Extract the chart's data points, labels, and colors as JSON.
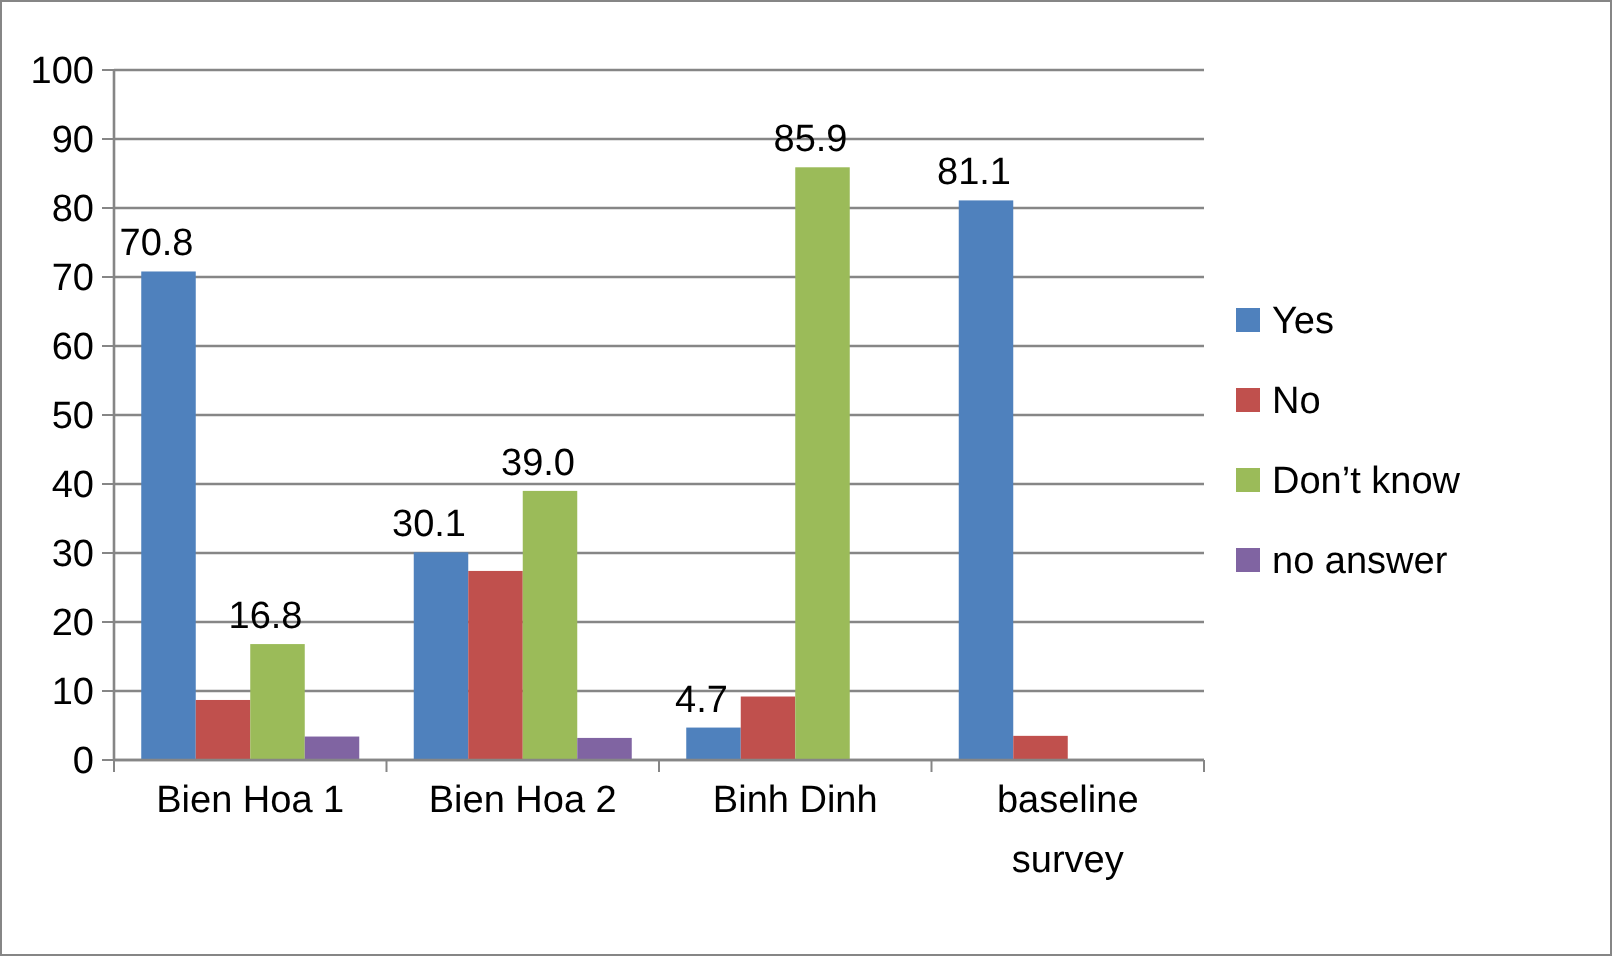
{
  "chart_data": {
    "type": "bar",
    "categories": [
      "Bien Hoa 1",
      "Bien Hoa 2",
      "Binh Dinh",
      "baseline survey"
    ],
    "series": [
      {
        "name": "Yes",
        "color": "#4f81bd",
        "values": [
          70.8,
          30.1,
          4.7,
          81.1
        ],
        "value_labels": [
          "70.8",
          "30.1",
          "4.7",
          "81.1"
        ]
      },
      {
        "name": "No",
        "color": "#c0504d",
        "values": [
          8.7,
          27.4,
          9.2,
          3.5
        ]
      },
      {
        "name": "Don’t know",
        "color": "#9bbb59",
        "values": [
          16.8,
          39.0,
          85.9,
          null
        ],
        "value_labels": [
          "16.8",
          "39.0",
          "85.9",
          null
        ]
      },
      {
        "name": "no answer",
        "color": "#8064a2",
        "values": [
          3.4,
          3.2,
          null,
          null
        ]
      }
    ],
    "ylim": [
      0,
      100
    ],
    "yticks": [
      0,
      10,
      20,
      30,
      40,
      50,
      60,
      70,
      80,
      90,
      100
    ],
    "grid": "y",
    "legend": "right"
  }
}
